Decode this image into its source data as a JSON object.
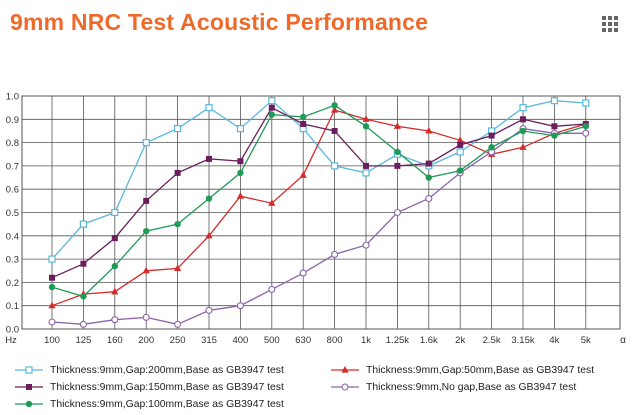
{
  "header": {
    "title": "9mm NRC Test Acoustic Performance",
    "menu_icon": "grid-menu-icon"
  },
  "chart_data": {
    "type": "line",
    "title": "9mm NRC Test Acoustic Performance",
    "x_unit_label": "Hz",
    "x_end_label": "α",
    "categories": [
      "100",
      "125",
      "160",
      "200",
      "250",
      "315",
      "400",
      "500",
      "630",
      "800",
      "1k",
      "1.25k",
      "1.6k",
      "2k",
      "2.5k",
      "3.15k",
      "4k",
      "5k"
    ],
    "y_ticks": [
      "0.0",
      "0.1",
      "0.2",
      "0.3",
      "0.4",
      "0.5",
      "0.6",
      "0.7",
      "0.8",
      "0.9",
      "1.0"
    ],
    "ylim": [
      0,
      1.0
    ],
    "grid": true,
    "legend_position": "bottom",
    "series": [
      {
        "name": "Thickness:9mm,Gap:200mm,Base as GB3947 test",
        "color": "#5ab8de",
        "marker": "open-square",
        "values": [
          0.3,
          0.45,
          0.5,
          0.8,
          0.86,
          0.95,
          0.86,
          0.98,
          0.86,
          0.7,
          0.67,
          0.75,
          0.7,
          0.76,
          0.85,
          0.95,
          0.98,
          0.97
        ]
      },
      {
        "name": "Thickness:9mm,Gap:50mm,Base as GB3947 test",
        "color": "#d42b2b",
        "marker": "triangle",
        "values": [
          0.1,
          0.15,
          0.16,
          0.25,
          0.26,
          0.4,
          0.57,
          0.54,
          0.66,
          0.94,
          0.9,
          0.87,
          0.85,
          0.81,
          0.75,
          0.78,
          0.84,
          0.88
        ]
      },
      {
        "name": "Thickness:9mm,Gap:150mm,Base as GB3947 test",
        "color": "#6b1d5e",
        "marker": "square",
        "values": [
          0.22,
          0.28,
          0.39,
          0.55,
          0.67,
          0.73,
          0.72,
          0.95,
          0.88,
          0.85,
          0.7,
          0.7,
          0.71,
          0.79,
          0.83,
          0.9,
          0.87,
          0.88
        ]
      },
      {
        "name": "Thickness:9mm,No gap,Base as GB3947 test",
        "color": "#8b62a8",
        "marker": "open-circle",
        "values": [
          0.03,
          0.02,
          0.04,
          0.05,
          0.02,
          0.08,
          0.1,
          0.17,
          0.24,
          0.32,
          0.36,
          0.5,
          0.56,
          0.67,
          0.76,
          0.86,
          0.84,
          0.84
        ]
      },
      {
        "name": "Thickness:9mm,Gap:100mm,Base as GB3947 test",
        "color": "#1e9b57",
        "marker": "circle",
        "values": [
          0.18,
          0.14,
          0.27,
          0.42,
          0.45,
          0.56,
          0.67,
          0.92,
          0.91,
          0.96,
          0.87,
          0.76,
          0.65,
          0.68,
          0.78,
          0.85,
          0.83,
          0.87
        ]
      }
    ]
  }
}
